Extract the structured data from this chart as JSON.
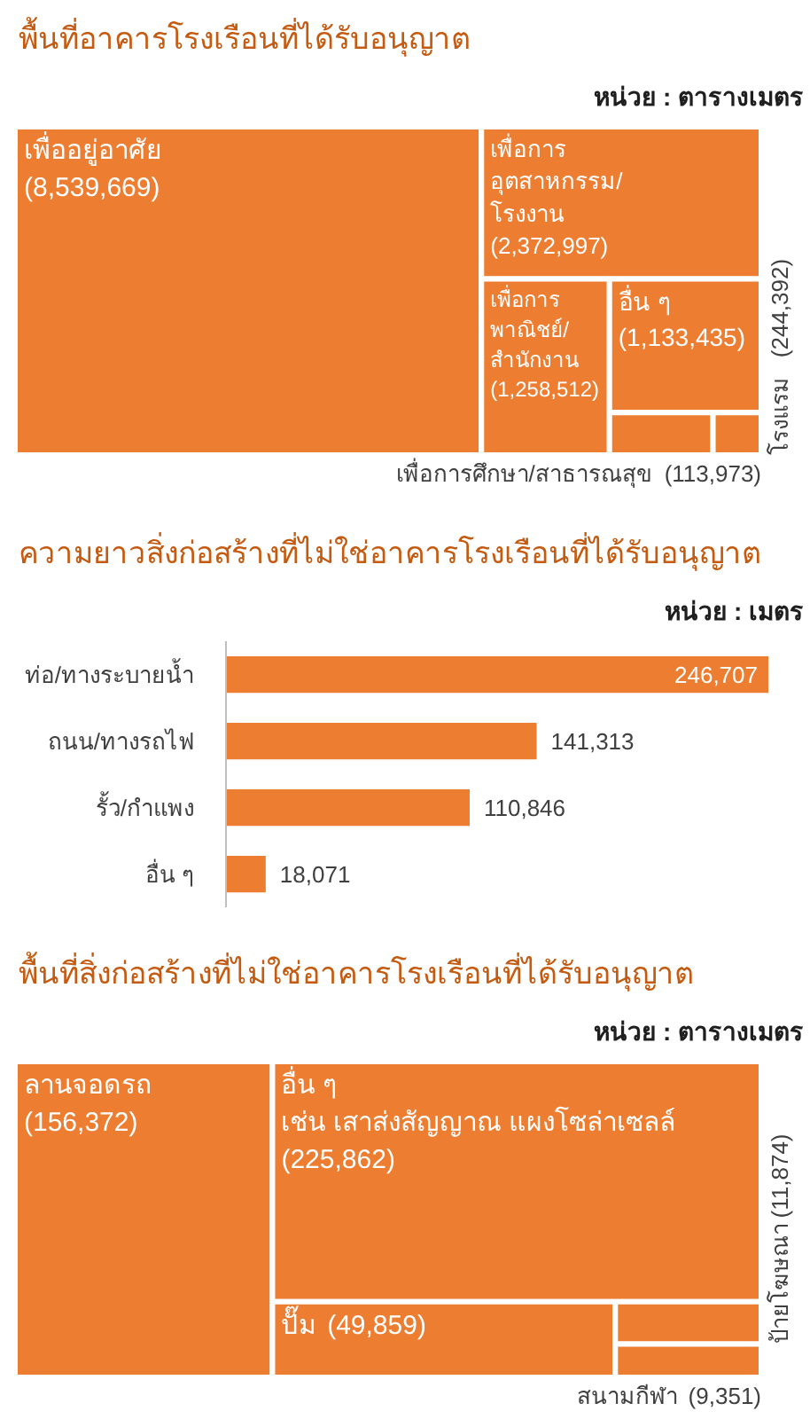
{
  "chart_data": [
    {
      "type": "other",
      "title": "พื้นที่อาคารโรงเรือนที่ได้รับอนุญาต",
      "subtitle": "หน่วย : ตารางเมตร",
      "categories": [
        "เพื่ออยู่อาศัย",
        "เพื่อการ\nอุตสาหกรรม/\nโรงงาน",
        "เพื่อการ\nพาณิชย์/\nสำนักงาน",
        "อื่น ๆ",
        "โรงแรม",
        "เพื่อการศึกษา/สาธารณสุข"
      ],
      "values": [
        8539669,
        2372997,
        1258512,
        1133435,
        244392,
        113973
      ],
      "value_labels": [
        "(8,539,669)",
        "(2,372,997)",
        "(1,258,512)",
        "(1,133,435)",
        "(244,392)",
        "(113,973)"
      ],
      "colors": [
        "#ed7d31",
        "#ed7d31",
        "#ed7d31",
        "#ed7d31",
        "#ed7d31",
        "#ed7d31"
      ]
    },
    {
      "type": "bar",
      "orientation": "horizontal",
      "title": "ความยาวสิ่งก่อสร้างที่ไม่ใช่อาคารโรงเรือนที่ได้รับอนุญาต",
      "subtitle": "หน่วย : เมตร",
      "categories": [
        "ท่อ/ทางระบายน้ำ",
        "ถนน/ทางรถไฟ",
        "รั้ว/กำแพง",
        "อื่น ๆ"
      ],
      "values": [
        246707,
        141313,
        110846,
        18071
      ],
      "value_labels": [
        "246,707",
        "141,313",
        "110,846",
        "18,071"
      ],
      "colors": [
        "#ed7d31",
        "#ed7d31",
        "#ed7d31",
        "#ed7d31"
      ],
      "tick_labels": "y"
    },
    {
      "type": "other",
      "title": "พื้นที่สิ่งก่อสร้างที่ไม่ใช่อาคารโรงเรือนที่ได้รับอนุญาต",
      "subtitle": "หน่วย : ตารางเมตร",
      "categories": [
        "ลานจอดรถ",
        "อื่น ๆ\nเช่น เสาส่งสัญญาณ แผงโซล่าเซลล์",
        "ปั๊ม",
        "ป้ายโฆษณา",
        "สนามกีฬา"
      ],
      "values": [
        156372,
        225862,
        49859,
        11874,
        9351
      ],
      "value_labels": [
        "(156,372)",
        "(225,862)",
        "(49,859)",
        "(11,874)",
        "(9,351)"
      ],
      "colors": [
        "#ed7d31",
        "#ed7d31",
        "#ed7d31",
        "#ed7d31",
        "#ed7d31"
      ]
    }
  ]
}
